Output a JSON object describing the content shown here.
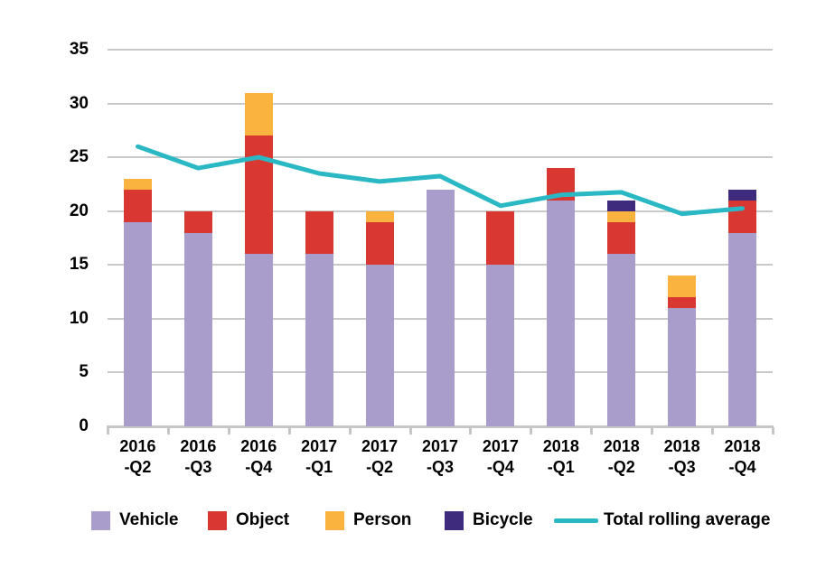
{
  "chart_data": {
    "type": "bar",
    "subtype": "stacked-bars-with-line-overlay",
    "title": "",
    "xlabel": "",
    "ylabel": "",
    "categories": [
      "2016-Q2",
      "2016-Q3",
      "2016-Q4",
      "2017-Q1",
      "2017-Q2",
      "2017-Q3",
      "2017-Q4",
      "2018-Q1",
      "2018-Q2",
      "2018-Q3",
      "2018-Q4"
    ],
    "series": [
      {
        "name": "Vehicle",
        "color": "#A89DCB",
        "values": [
          19,
          18,
          16,
          16,
          15,
          22,
          15,
          21,
          16,
          11,
          18
        ]
      },
      {
        "name": "Object",
        "color": "#D93832",
        "values": [
          3,
          2,
          11,
          4,
          4,
          0,
          5,
          3,
          3,
          1,
          3
        ]
      },
      {
        "name": "Person",
        "color": "#FBB33F",
        "values": [
          1,
          0,
          4,
          0,
          1,
          0,
          0,
          0,
          1,
          2,
          0
        ]
      },
      {
        "name": "Bicycle",
        "color": "#3F2B7E",
        "values": [
          0,
          0,
          0,
          0,
          0,
          0,
          0,
          0,
          1,
          0,
          1
        ]
      }
    ],
    "stack_totals": [
      23,
      20,
      31,
      20,
      20,
      22,
      20,
      24,
      21,
      14,
      22
    ],
    "line_series": {
      "name": "Total rolling average",
      "color": "#2BB8C5",
      "values": [
        26,
        24,
        25,
        23.5,
        22.75,
        23.25,
        20.5,
        21.5,
        21.75,
        19.75,
        20.25
      ]
    },
    "ylim": [
      0,
      35
    ],
    "yticks": [
      0,
      5,
      10,
      15,
      20,
      25,
      30,
      35
    ],
    "ytick_labels": [
      "0",
      "5",
      "10",
      "15",
      "20",
      "25",
      "30",
      "35"
    ],
    "grid": true,
    "gridline_color": "#C9C9C9",
    "axis_color": "#C6C6C6",
    "text_color": "#000000",
    "legend_position": "bottom",
    "legend_entries": [
      "Vehicle",
      "Object",
      "Person",
      "Bicycle",
      "Total rolling average"
    ]
  }
}
